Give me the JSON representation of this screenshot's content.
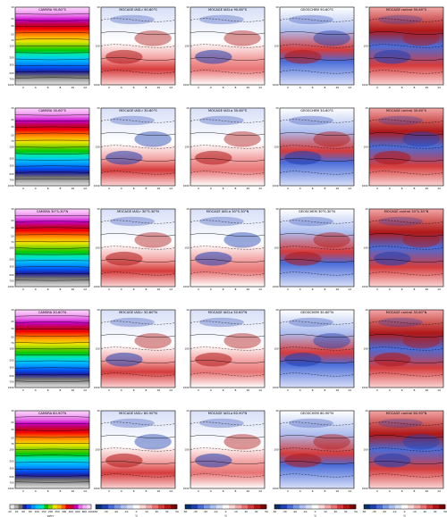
{
  "figure": {
    "rows": [
      {
        "titles": [
          "CAMSRA 90-60°S",
          "MOCAGE IASI-r 90-60°S",
          "MOCAGE IASI-a 90-60°S",
          "GEOSCHEM 90-60°S",
          "MOCAGE control 90-60°S"
        ],
        "y_ticks": [
          "10",
          "20",
          "30",
          "50",
          "70",
          "100",
          "200",
          "300",
          "500",
          "700",
          "1000"
        ]
      },
      {
        "titles": [
          "CAMSRA 30-60°S",
          "MOCAGE IASI-r 30-60°S",
          "MOCAGE IASI-a 30-60°S",
          "GEOSCHEM 30-60°S",
          "MOCAGE control 30-60°S"
        ],
        "y_ticks": [
          "10",
          "20",
          "30",
          "50",
          "70",
          "100",
          "200",
          "300",
          "500",
          "700",
          "1000"
        ]
      },
      {
        "titles": [
          "CAMSRA 30°S-30°N",
          "MOCAGE IASI-r 30°S-30°N",
          "MOCAGE IASI-a 30°S-30°N",
          "GEOSCHEM 30°S-30°N",
          "MOCAGE control 30°S-30°N"
        ],
        "y_ticks": [
          "10",
          "20",
          "30",
          "50",
          "70",
          "100",
          "200",
          "300",
          "500",
          "700",
          "1000"
        ]
      },
      {
        "titles": [
          "CAMSRA 30-60°N",
          "MOCAGE IASI-r 30-60°N",
          "MOCAGE IASI-a 30-60°N",
          "GEOSCHEM 30-60°N",
          "MOCAGE control 30-60°N"
        ],
        "y_ticks": [
          "10",
          "20",
          "30",
          "50",
          "70",
          "100",
          "200",
          "300",
          "500",
          "700",
          "1000"
        ]
      },
      {
        "titles": [
          "CAMSRA 60-90°N",
          "MOCAGE IASI-r 60-90°N",
          "MOCAGE IASI-a 60-90°N",
          "GEOSCHEM 60-90°N",
          "MOCAGE control 60-90°N"
        ],
        "y_ticks": [
          "10",
          "20",
          "30",
          "50",
          "70",
          "100",
          "200",
          "300",
          "500",
          "700",
          "1000"
        ]
      }
    ],
    "colorbars": [
      {
        "ticks": [
          "20",
          "40",
          "60",
          "80",
          "100",
          "150",
          "200",
          "250",
          "300",
          "400",
          "600",
          "800",
          "1000"
        ],
        "unit": "ppbv",
        "colors": [
          "#e8e8e8",
          "#b0b0b0",
          "#707070",
          "#1f1f9f",
          "#0050f0",
          "#0096ff",
          "#00c8ff",
          "#00e6b4",
          "#00c800",
          "#7ccd00",
          "#e6e600",
          "#ffb400",
          "#ff6400",
          "#f00000",
          "#c00040",
          "#c800c8",
          "#e670e6",
          "#f5aef5",
          "#fbd8fb"
        ]
      },
      {
        "ticks": [
          "-50",
          "-30",
          "-20",
          "-10",
          "0",
          "10",
          "20",
          "30",
          "50"
        ],
        "unit": "%"
      },
      {
        "ticks": [
          "-50",
          "-30",
          "-20",
          "-10",
          "0",
          "10",
          "20",
          "30",
          "50"
        ],
        "unit": "%"
      },
      {
        "ticks": [
          "-50",
          "-30",
          "-20",
          "-10",
          "0",
          "10",
          "20",
          "30",
          "50"
        ],
        "unit": "%"
      },
      {
        "ticks": [
          "-50",
          "-30",
          "-20",
          "-10",
          "0",
          "10",
          "20",
          "30",
          "50"
        ],
        "unit": "%"
      }
    ],
    "diverging_colors": [
      "#08306b",
      "#2040b0",
      "#4a6cd8",
      "#7c9ae6",
      "#aebff0",
      "#d8e0f8",
      "#ffffff",
      "#fbd6d6",
      "#f3a6a6",
      "#e87474",
      "#d63c3c",
      "#b01818",
      "#7a0000"
    ]
  },
  "chart_data": [
    {
      "type": "heatmap",
      "panel": "CAMSRA (5 latitude bands)",
      "x": [
        1,
        2,
        3,
        4,
        5,
        6,
        7,
        8,
        9,
        10,
        11,
        12
      ],
      "x_ticks": [
        "2",
        "4",
        "6",
        "8",
        "10",
        "12"
      ],
      "y_ticks": [
        "10",
        "20",
        "30",
        "50",
        "70",
        "100",
        "200",
        "300",
        "500",
        "700",
        "1000"
      ],
      "ylim": [
        1000,
        10
      ],
      "y_scale": "log",
      "unit": "ppbv",
      "levels": [
        20,
        40,
        60,
        80,
        100,
        150,
        200,
        250,
        300,
        400,
        600,
        800,
        1000
      ]
    },
    {
      "type": "heatmap",
      "panel": "MOCAGE IASI-r (5 latitude bands)",
      "x_ticks": [
        "2",
        "4",
        "6",
        "8",
        "10",
        "12"
      ],
      "ylim": [
        1000,
        10
      ],
      "unit": "%",
      "levels": [
        -50,
        -30,
        -20,
        -10,
        0,
        10,
        20,
        30,
        50
      ]
    },
    {
      "type": "heatmap",
      "panel": "MOCAGE IASI-a (5 latitude bands)",
      "x_ticks": [
        "2",
        "4",
        "6",
        "8",
        "10",
        "12"
      ],
      "ylim": [
        1000,
        10
      ],
      "unit": "%",
      "levels": [
        -50,
        -30,
        -20,
        -10,
        0,
        10,
        20,
        30,
        50
      ]
    },
    {
      "type": "heatmap",
      "panel": "GEOSCHEM (5 latitude bands)",
      "x_ticks": [
        "2",
        "4",
        "6",
        "8",
        "10",
        "12"
      ],
      "ylim": [
        1000,
        10
      ],
      "unit": "%",
      "levels": [
        -50,
        -30,
        -20,
        -10,
        0,
        10,
        20,
        30,
        50
      ]
    },
    {
      "type": "heatmap",
      "panel": "MOCAGE control (5 latitude bands)",
      "x_ticks": [
        "2",
        "4",
        "6",
        "8",
        "10",
        "12"
      ],
      "ylim": [
        1000,
        10
      ],
      "unit": "%",
      "levels": [
        -50,
        -30,
        -20,
        -10,
        0,
        10,
        20,
        30,
        50
      ]
    }
  ]
}
